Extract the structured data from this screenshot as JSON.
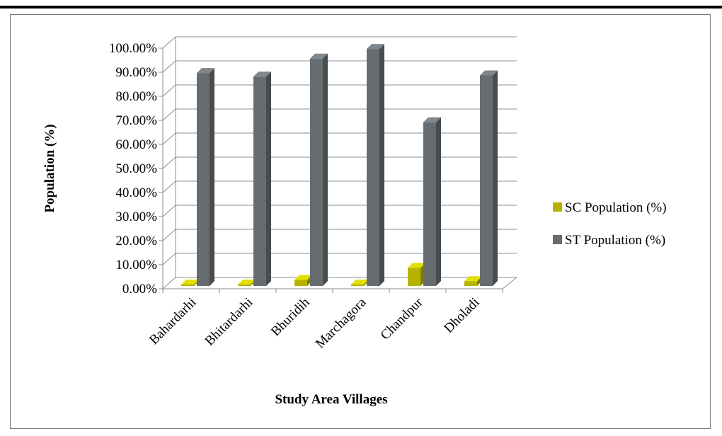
{
  "chart_data": {
    "type": "bar",
    "categories": [
      "Bahardarhi",
      "Bhitardarhi",
      "Bhuridih",
      "Marchagora",
      "Chandpur",
      "Dholadi"
    ],
    "series": [
      {
        "name": "SC Population (%)",
        "values": [
          0.0,
          0.0,
          2.5,
          0.0,
          7.5,
          2.0
        ],
        "color": "#b5b300"
      },
      {
        "name": "ST Population (%)",
        "values": [
          88.5,
          87.0,
          94.5,
          98.5,
          68.0,
          87.5
        ],
        "color": "#666c70"
      }
    ],
    "yticks": [
      "0.00%",
      "10.00%",
      "20.00%",
      "30.00%",
      "40.00%",
      "50.00%",
      "60.00%",
      "70.00%",
      "80.00%",
      "90.00%",
      "100.00%"
    ],
    "ylim": [
      0,
      100
    ],
    "xlabel": "Study Area Villages",
    "ylabel": "Population (%)",
    "grid": true,
    "legend_position": "right"
  }
}
